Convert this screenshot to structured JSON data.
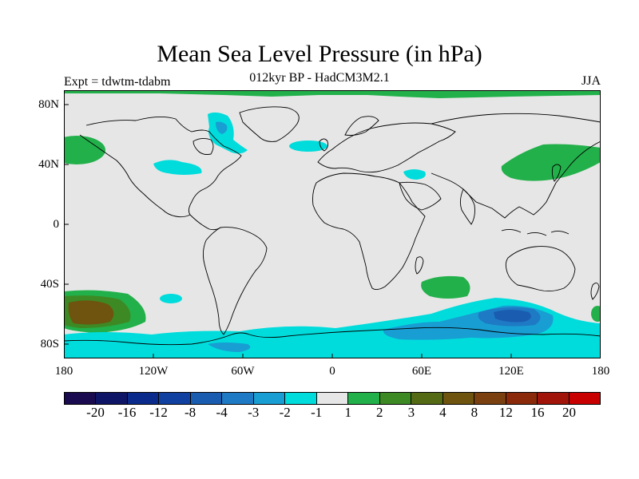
{
  "title": "Mean Sea Level Pressure (in hPa)",
  "subtitle": "012kyr BP - HadCM3M2.1",
  "experiment_label": "Expt = tdwtm-tdabm",
  "season_label": "JJA",
  "lat_labels": [
    "80N",
    "40N",
    "0",
    "40S",
    "80S"
  ],
  "lon_labels": [
    "180",
    "120W",
    "60W",
    "0",
    "60E",
    "120E",
    "180"
  ],
  "colorbar": {
    "colors": [
      "#1a0a4f",
      "#0e1466",
      "#0a2a8c",
      "#1040a0",
      "#1a5cb0",
      "#1e7ac4",
      "#189ed2",
      "#00dcdc",
      "#e6e6e6",
      "#22b04a",
      "#3d8a24",
      "#546a14",
      "#6e540e",
      "#7a4010",
      "#8a2a0a",
      "#a0140a",
      "#c80000"
    ],
    "labels": [
      "-20",
      "-16",
      "-12",
      "-8",
      "-4",
      "-3",
      "-2",
      "-1",
      "1",
      "2",
      "3",
      "4",
      "8",
      "12",
      "16",
      "20"
    ]
  },
  "map": {
    "background_color": "#e6e6e6",
    "coastline_color": "#000000"
  }
}
